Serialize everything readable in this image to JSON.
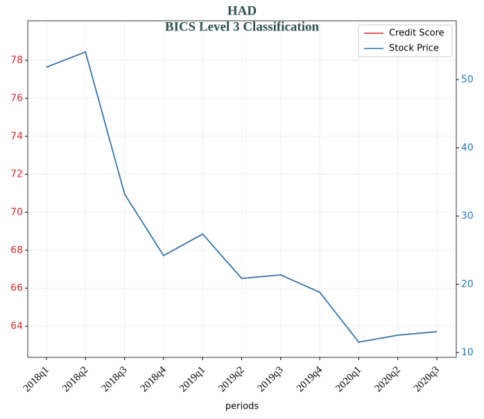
{
  "chart_data": {
    "type": "line",
    "title": "HAD",
    "subtitle": "BICS Level 3 Classification",
    "x_label": "periods",
    "categories": [
      "2018q1",
      "2018q2",
      "2018q3",
      "2018q4",
      "2019q1",
      "2019q2",
      "2019q3",
      "2019q4",
      "2020q1",
      "2020q2",
      "2020q3"
    ],
    "series": [
      {
        "name": "Credit Score",
        "color": "#d62728",
        "values": [
          77.64,
          78.44,
          70.96,
          67.72,
          68.85,
          66.52,
          66.7,
          65.79,
          63.16,
          63.53,
          63.71
        ]
      },
      {
        "name": "Stock Price",
        "color": "#1f77b4",
        "axis": "y2",
        "values": [
          51.83,
          54.06,
          33.25,
          24.21,
          27.36,
          20.86,
          21.37,
          18.83,
          11.52,
          12.54,
          13.05
        ]
      }
    ],
    "ylim": [
      62.36,
      80.08
    ],
    "yticks": [
      64,
      66,
      68,
      70,
      72,
      74,
      76,
      78
    ],
    "y2lim": [
      9.29,
      58.63
    ],
    "y2ticks": [
      10,
      20,
      30,
      40,
      50
    ],
    "grid": true,
    "legend": "upper right"
  }
}
